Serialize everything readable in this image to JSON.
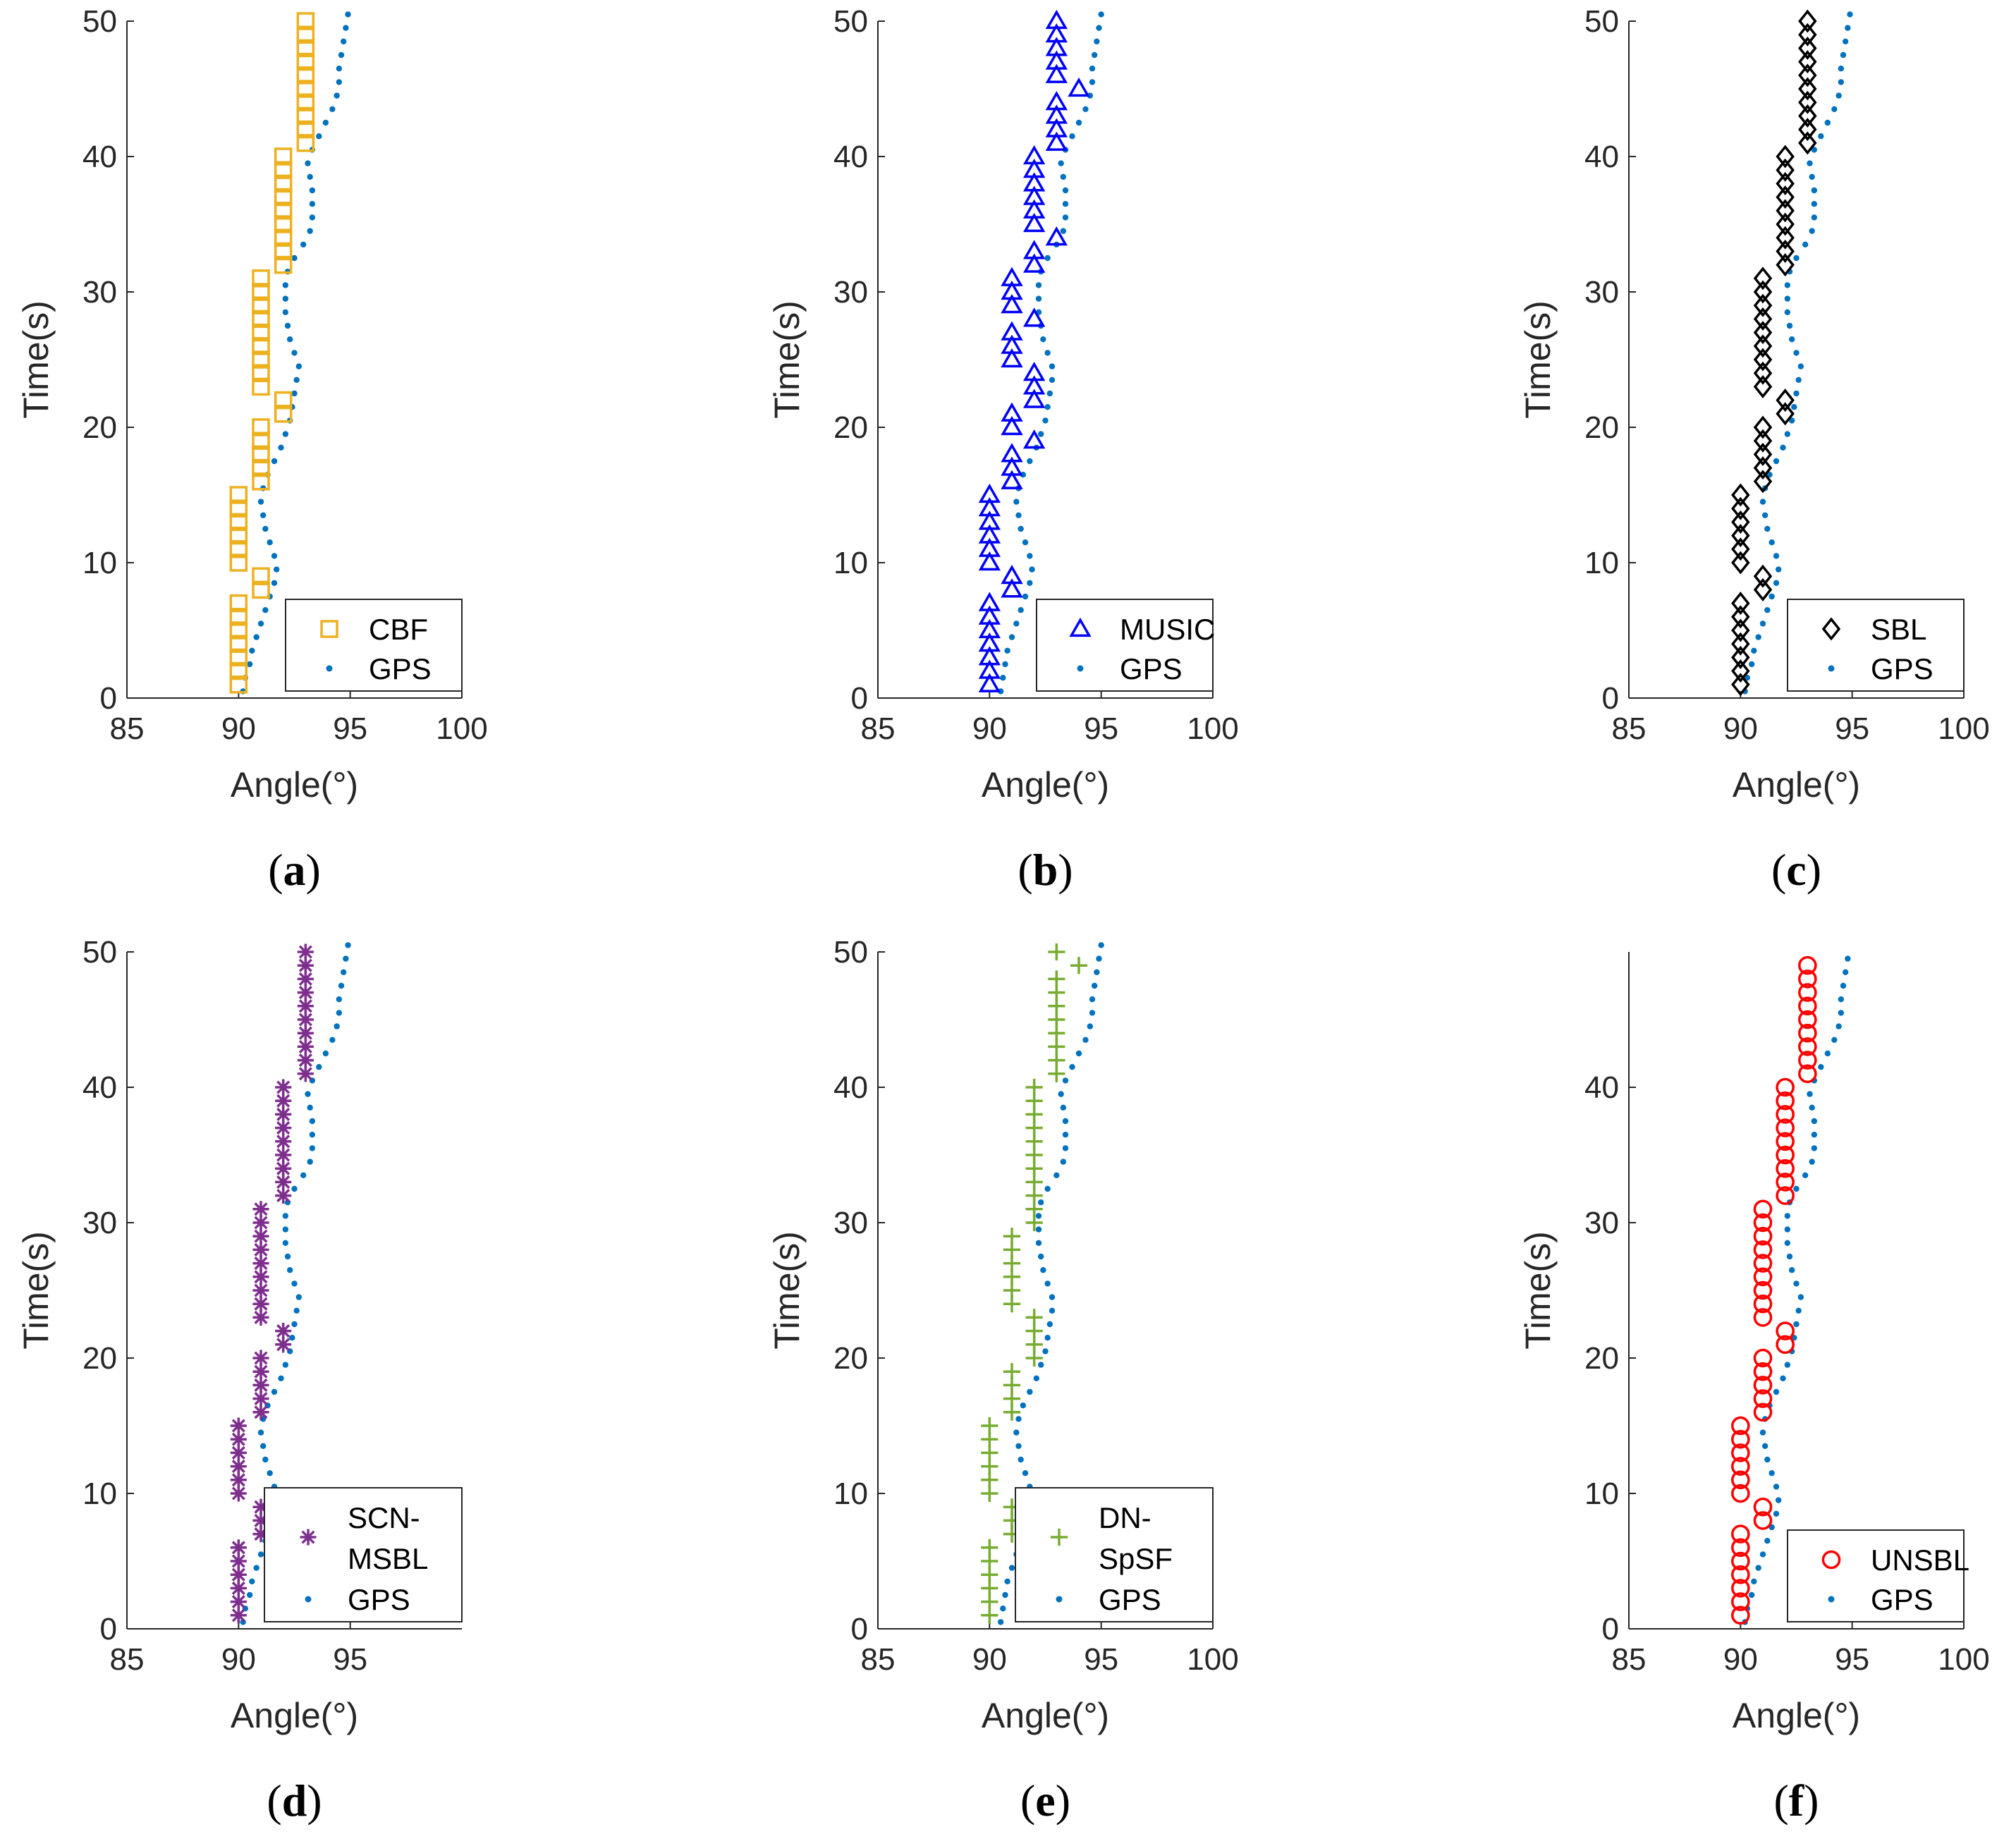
{
  "figure": {
    "colors": {
      "axis": "#262626",
      "gps": "#0072BD",
      "background": "#ffffff"
    },
    "gps_label": "GPS"
  },
  "chart_data": [
    {
      "id": "a",
      "type": "scatter",
      "panel_label": "a",
      "xlabel": "Angle(°)",
      "ylabel": "Time(s)",
      "xlim": [
        85,
        100
      ],
      "ylim": [
        0,
        50
      ],
      "xticks": [
        85,
        90,
        95,
        100
      ],
      "yticks": [
        0,
        10,
        20,
        30,
        40,
        50
      ],
      "grid": false,
      "legend": "bottom-right",
      "marker": "square",
      "color": "#EDB120",
      "legend_lines": [
        "CBF"
      ],
      "estimates_t_start": 1,
      "estimates": [
        90,
        90,
        90,
        90,
        90,
        90,
        90,
        91,
        91,
        90,
        90,
        90,
        90,
        90,
        90,
        91,
        91,
        91,
        91,
        91,
        92,
        92,
        91,
        91,
        91,
        91,
        91,
        91,
        91,
        91,
        91,
        92,
        92,
        92,
        92,
        92,
        92,
        92,
        92,
        92,
        93,
        93,
        93,
        93,
        93,
        93,
        93,
        93,
        93,
        93
      ],
      "gps_t_start": 0.5,
      "gps": [
        90.2,
        90.3,
        90.5,
        90.6,
        90.8,
        91.0,
        91.2,
        91.4,
        91.6,
        91.7,
        91.6,
        91.4,
        91.2,
        91.1,
        91.0,
        91.1,
        91.3,
        91.6,
        91.9,
        92.1,
        92.3,
        92.4,
        92.5,
        92.6,
        92.7,
        92.5,
        92.3,
        92.2,
        92.1,
        92.1,
        92.1,
        92.2,
        92.5,
        92.9,
        93.2,
        93.3,
        93.3,
        93.3,
        93.2,
        93.1,
        93.3,
        93.6,
        93.9,
        94.2,
        94.4,
        94.5,
        94.5,
        94.6,
        94.7,
        94.8,
        94.9
      ]
    },
    {
      "id": "b",
      "type": "scatter",
      "panel_label": "b",
      "xlabel": "Angle(°)",
      "ylabel": "Time(s)",
      "xlim": [
        85,
        100
      ],
      "ylim": [
        0,
        50
      ],
      "xticks": [
        85,
        90,
        95,
        100
      ],
      "yticks": [
        0,
        10,
        20,
        30,
        40,
        50
      ],
      "grid": false,
      "legend": "bottom-right",
      "marker": "triangle",
      "color": "#0000FF",
      "legend_lines": [
        "MUSIC"
      ],
      "estimates_t_start": 1,
      "estimates": [
        90,
        90,
        90,
        90,
        90,
        90,
        90,
        91,
        91,
        90,
        90,
        90,
        90,
        90,
        90,
        91,
        91,
        91,
        92,
        91,
        91,
        92,
        92,
        92,
        91,
        91,
        91,
        92,
        91,
        91,
        91,
        92,
        92,
        93,
        92,
        92,
        92,
        92,
        92,
        92,
        93,
        93,
        93,
        93,
        94,
        93,
        93,
        93,
        93,
        93
      ],
      "gps_t_start": 0.5,
      "gps": [
        90.5,
        90.6,
        90.7,
        90.8,
        91.0,
        91.2,
        91.4,
        91.6,
        91.8,
        91.9,
        91.8,
        91.6,
        91.4,
        91.3,
        91.2,
        91.3,
        91.5,
        91.8,
        92.1,
        92.3,
        92.5,
        92.6,
        92.7,
        92.8,
        92.8,
        92.6,
        92.4,
        92.3,
        92.2,
        92.2,
        92.2,
        92.3,
        92.6,
        93.0,
        93.3,
        93.4,
        93.4,
        93.4,
        93.3,
        93.2,
        93.4,
        93.7,
        94.0,
        94.3,
        94.5,
        94.6,
        94.6,
        94.7,
        94.8,
        94.9,
        95.0
      ]
    },
    {
      "id": "c",
      "type": "scatter",
      "panel_label": "c",
      "xlabel": "Angle(°)",
      "ylabel": "Time(s)",
      "xlim": [
        85,
        100
      ],
      "ylim": [
        0,
        50
      ],
      "xticks": [
        85,
        90,
        95,
        100
      ],
      "yticks": [
        0,
        10,
        20,
        30,
        40,
        50
      ],
      "grid": false,
      "legend": "bottom-right",
      "marker": "diamond",
      "color": "#000000",
      "legend_lines": [
        "SBL"
      ],
      "estimates_t_start": 1,
      "estimates": [
        90,
        90,
        90,
        90,
        90,
        90,
        90,
        91,
        91,
        90,
        90,
        90,
        90,
        90,
        90,
        91,
        91,
        91,
        91,
        91,
        92,
        92,
        91,
        91,
        91,
        91,
        91,
        91,
        91,
        91,
        91,
        92,
        92,
        92,
        92,
        92,
        92,
        92,
        92,
        92,
        93,
        93,
        93,
        93,
        93,
        93,
        93,
        93,
        93,
        93
      ],
      "gps_t_start": 0.5,
      "gps": [
        90.2,
        90.3,
        90.5,
        90.6,
        90.8,
        91.0,
        91.2,
        91.4,
        91.6,
        91.7,
        91.6,
        91.4,
        91.2,
        91.1,
        91.0,
        91.1,
        91.3,
        91.6,
        91.9,
        92.1,
        92.3,
        92.4,
        92.5,
        92.6,
        92.7,
        92.5,
        92.3,
        92.2,
        92.1,
        92.1,
        92.1,
        92.2,
        92.5,
        92.9,
        93.2,
        93.3,
        93.3,
        93.3,
        93.2,
        93.1,
        93.3,
        93.6,
        93.9,
        94.2,
        94.4,
        94.5,
        94.5,
        94.6,
        94.7,
        94.8,
        94.9
      ]
    },
    {
      "id": "d",
      "type": "scatter",
      "panel_label": "d",
      "xlabel": "Angle(°)",
      "ylabel": "Time(s)",
      "xlim": [
        85,
        100
      ],
      "ylim": [
        0,
        50
      ],
      "xticks": [
        85,
        90,
        95
      ],
      "yticks": [
        0,
        10,
        20,
        30,
        40,
        50
      ],
      "grid": false,
      "legend": "bottom-right",
      "marker": "asterisk",
      "color": "#7E2F8E",
      "legend_lines": [
        "SCN-",
        "MSBL"
      ],
      "estimates_t_start": 1,
      "estimates": [
        90,
        90,
        90,
        90,
        90,
        90,
        91,
        91,
        91,
        90,
        90,
        90,
        90,
        90,
        90,
        91,
        91,
        91,
        91,
        91,
        92,
        92,
        91,
        91,
        91,
        91,
        91,
        91,
        91,
        91,
        91,
        92,
        92,
        92,
        92,
        92,
        92,
        92,
        92,
        92,
        93,
        93,
        93,
        93,
        93,
        93,
        93,
        93,
        93,
        93
      ],
      "gps_t_start": 0.5,
      "gps": [
        90.2,
        90.3,
        90.5,
        90.6,
        90.8,
        91.0,
        91.2,
        91.4,
        91.6,
        91.7,
        91.6,
        91.4,
        91.2,
        91.1,
        91.0,
        91.1,
        91.3,
        91.6,
        91.9,
        92.1,
        92.3,
        92.4,
        92.5,
        92.6,
        92.7,
        92.5,
        92.3,
        92.2,
        92.1,
        92.1,
        92.1,
        92.2,
        92.5,
        92.9,
        93.2,
        93.3,
        93.3,
        93.3,
        93.2,
        93.1,
        93.3,
        93.6,
        93.9,
        94.2,
        94.4,
        94.5,
        94.5,
        94.6,
        94.7,
        94.8,
        94.9
      ]
    },
    {
      "id": "e",
      "type": "scatter",
      "panel_label": "e",
      "xlabel": "Angle(°)",
      "ylabel": "Time(s)",
      "xlim": [
        85,
        100
      ],
      "ylim": [
        0,
        50
      ],
      "xticks": [
        85,
        90,
        95,
        100
      ],
      "yticks": [
        0,
        10,
        20,
        30,
        40,
        50
      ],
      "grid": false,
      "legend": "bottom-right",
      "marker": "plus",
      "color": "#77AC30",
      "legend_lines": [
        "DN-",
        "SpSF"
      ],
      "estimates_t_start": 1,
      "estimates": [
        90,
        90,
        90,
        90,
        90,
        90,
        91,
        91,
        91,
        90,
        90,
        90,
        90,
        90,
        90,
        91,
        91,
        91,
        91,
        92,
        92,
        92,
        92,
        91,
        91,
        91,
        91,
        91,
        91,
        92,
        92,
        92,
        92,
        92,
        92,
        92,
        92,
        92,
        92,
        92,
        93,
        93,
        93,
        93,
        93,
        93,
        93,
        93,
        94,
        93
      ],
      "gps_t_start": 0.5,
      "gps": [
        90.5,
        90.6,
        90.7,
        90.8,
        91.0,
        91.2,
        91.4,
        91.6,
        91.8,
        91.9,
        91.8,
        91.6,
        91.4,
        91.3,
        91.2,
        91.3,
        91.5,
        91.8,
        92.1,
        92.3,
        92.5,
        92.6,
        92.7,
        92.8,
        92.8,
        92.6,
        92.4,
        92.3,
        92.2,
        92.2,
        92.2,
        92.3,
        92.6,
        93.0,
        93.3,
        93.4,
        93.4,
        93.4,
        93.3,
        93.2,
        93.4,
        93.7,
        94.0,
        94.3,
        94.5,
        94.6,
        94.6,
        94.7,
        94.8,
        94.9,
        95.0
      ]
    },
    {
      "id": "f",
      "type": "scatter",
      "panel_label": "f",
      "xlabel": "Angle(°)",
      "ylabel": "Time(s)",
      "xlim": [
        85,
        100
      ],
      "ylim": [
        0,
        50
      ],
      "xticks": [
        85,
        90,
        95,
        100
      ],
      "yticks": [
        0,
        10,
        20,
        30,
        40
      ],
      "grid": false,
      "legend": "bottom-right",
      "marker": "circle",
      "color": "#FF0000",
      "legend_lines": [
        "UNSBL"
      ],
      "estimates_t_start": 1,
      "estimates": [
        90,
        90,
        90,
        90,
        90,
        90,
        90,
        91,
        91,
        90,
        90,
        90,
        90,
        90,
        90,
        91,
        91,
        91,
        91,
        91,
        92,
        92,
        91,
        91,
        91,
        91,
        91,
        91,
        91,
        91,
        91,
        92,
        92,
        92,
        92,
        92,
        92,
        92,
        92,
        92,
        93,
        93,
        93,
        93,
        93,
        93,
        93,
        93,
        93
      ],
      "gps_t_start": 0.5,
      "gps": [
        90.2,
        90.3,
        90.5,
        90.6,
        90.8,
        91.0,
        91.2,
        91.4,
        91.6,
        91.7,
        91.6,
        91.4,
        91.2,
        91.1,
        91.0,
        91.1,
        91.3,
        91.6,
        91.9,
        92.1,
        92.3,
        92.4,
        92.5,
        92.6,
        92.7,
        92.5,
        92.3,
        92.2,
        92.1,
        92.1,
        92.1,
        92.2,
        92.5,
        92.9,
        93.2,
        93.3,
        93.3,
        93.3,
        93.2,
        93.1,
        93.3,
        93.6,
        93.9,
        94.2,
        94.4,
        94.5,
        94.5,
        94.6,
        94.7,
        94.8
      ]
    }
  ]
}
